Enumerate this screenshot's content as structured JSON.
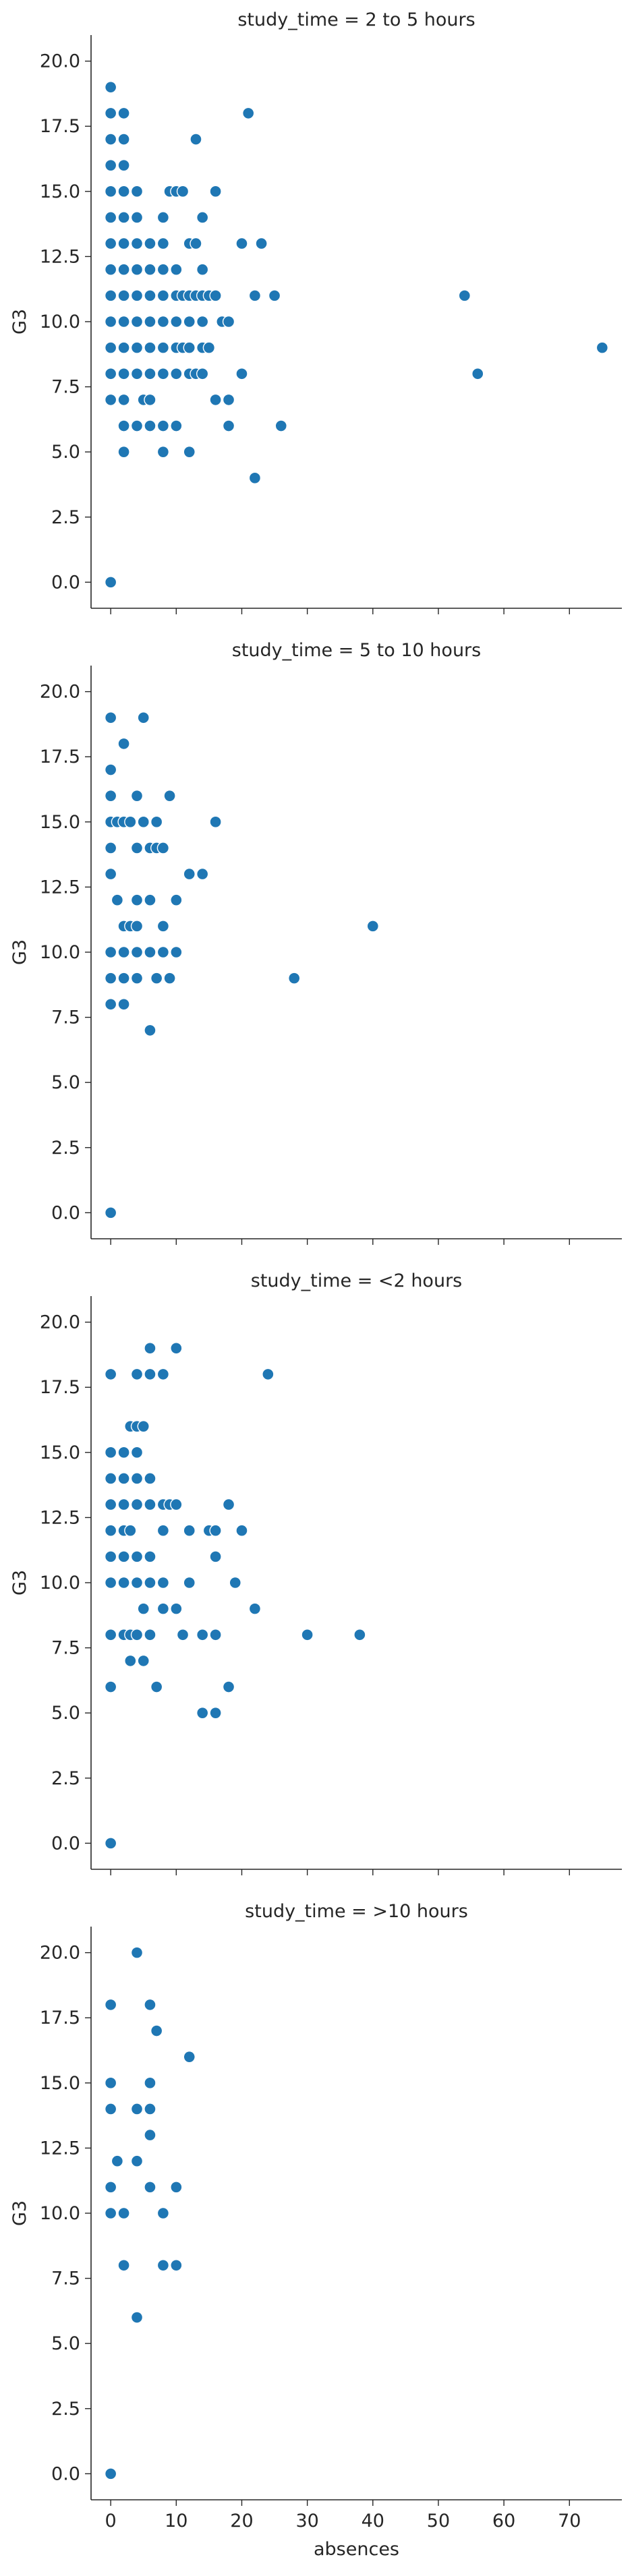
{
  "chart_data": {
    "type": "scatter",
    "layout": "facet-grid-rows",
    "facet_variable": "study_time",
    "xlabel": "absences",
    "ylabel": "G3",
    "xlim": [
      -3,
      78
    ],
    "ylim": [
      -1,
      21
    ],
    "xticks": [
      0,
      10,
      20,
      30,
      40,
      50,
      60,
      70
    ],
    "yticks": [
      0.0,
      2.5,
      5.0,
      7.5,
      10.0,
      12.5,
      15.0,
      17.5,
      20.0
    ],
    "ytick_labels": [
      "0.0",
      "2.5",
      "5.0",
      "7.5",
      "10.0",
      "12.5",
      "15.0",
      "17.5",
      "20.0"
    ],
    "marker_color": "#1f77b4",
    "marker_edge": "#ffffff",
    "grid": false,
    "facets": [
      {
        "title": "study_time = 2 to 5 hours",
        "points": [
          [
            0,
            19
          ],
          [
            0,
            18
          ],
          [
            0,
            17
          ],
          [
            0,
            16
          ],
          [
            0,
            15
          ],
          [
            0,
            14
          ],
          [
            0,
            13
          ],
          [
            0,
            12
          ],
          [
            0,
            11
          ],
          [
            0,
            10
          ],
          [
            0,
            9
          ],
          [
            0,
            8
          ],
          [
            0,
            7
          ],
          [
            0,
            0
          ],
          [
            2,
            18
          ],
          [
            2,
            17
          ],
          [
            2,
            16
          ],
          [
            2,
            15
          ],
          [
            2,
            14
          ],
          [
            2,
            13
          ],
          [
            2,
            12
          ],
          [
            2,
            11
          ],
          [
            2,
            10
          ],
          [
            2,
            9
          ],
          [
            2,
            8
          ],
          [
            2,
            7
          ],
          [
            2,
            6
          ],
          [
            2,
            5
          ],
          [
            4,
            15
          ],
          [
            4,
            14
          ],
          [
            4,
            13
          ],
          [
            4,
            12
          ],
          [
            4,
            11
          ],
          [
            4,
            10
          ],
          [
            4,
            9
          ],
          [
            4,
            8
          ],
          [
            4,
            6
          ],
          [
            5,
            7
          ],
          [
            6,
            13
          ],
          [
            6,
            12
          ],
          [
            6,
            11
          ],
          [
            6,
            10
          ],
          [
            6,
            9
          ],
          [
            6,
            8
          ],
          [
            6,
            7
          ],
          [
            6,
            6
          ],
          [
            8,
            14
          ],
          [
            8,
            13
          ],
          [
            8,
            12
          ],
          [
            8,
            11
          ],
          [
            8,
            10
          ],
          [
            8,
            9
          ],
          [
            8,
            8
          ],
          [
            8,
            6
          ],
          [
            8,
            5
          ],
          [
            9,
            15
          ],
          [
            10,
            15
          ],
          [
            10,
            12
          ],
          [
            10,
            11
          ],
          [
            10,
            10
          ],
          [
            10,
            9
          ],
          [
            10,
            8
          ],
          [
            10,
            6
          ],
          [
            11,
            15
          ],
          [
            11,
            11
          ],
          [
            11,
            9
          ],
          [
            12,
            13
          ],
          [
            12,
            11
          ],
          [
            12,
            10
          ],
          [
            12,
            9
          ],
          [
            12,
            8
          ],
          [
            12,
            5
          ],
          [
            13,
            17
          ],
          [
            13,
            13
          ],
          [
            13,
            11
          ],
          [
            13,
            8
          ],
          [
            14,
            14
          ],
          [
            14,
            12
          ],
          [
            14,
            11
          ],
          [
            14,
            10
          ],
          [
            14,
            9
          ],
          [
            14,
            8
          ],
          [
            15,
            11
          ],
          [
            15,
            9
          ],
          [
            16,
            15
          ],
          [
            16,
            11
          ],
          [
            16,
            7
          ],
          [
            17,
            10
          ],
          [
            18,
            10
          ],
          [
            18,
            7
          ],
          [
            18,
            6
          ],
          [
            20,
            13
          ],
          [
            20,
            8
          ],
          [
            21,
            18
          ],
          [
            22,
            11
          ],
          [
            22,
            4
          ],
          [
            23,
            13
          ],
          [
            25,
            11
          ],
          [
            26,
            6
          ],
          [
            54,
            11
          ],
          [
            56,
            8
          ],
          [
            75,
            9
          ]
        ]
      },
      {
        "title": "study_time = 5 to 10 hours",
        "points": [
          [
            0,
            19
          ],
          [
            0,
            17
          ],
          [
            0,
            16
          ],
          [
            0,
            15
          ],
          [
            0,
            14
          ],
          [
            0,
            13
          ],
          [
            0,
            10
          ],
          [
            0,
            9
          ],
          [
            0,
            8
          ],
          [
            0,
            0
          ],
          [
            1,
            15
          ],
          [
            1,
            12
          ],
          [
            2,
            18
          ],
          [
            2,
            15
          ],
          [
            2,
            11
          ],
          [
            2,
            10
          ],
          [
            2,
            9
          ],
          [
            2,
            8
          ],
          [
            3,
            15
          ],
          [
            3,
            11
          ],
          [
            4,
            16
          ],
          [
            4,
            14
          ],
          [
            4,
            12
          ],
          [
            4,
            11
          ],
          [
            4,
            10
          ],
          [
            4,
            9
          ],
          [
            5,
            19
          ],
          [
            5,
            15
          ],
          [
            6,
            14
          ],
          [
            6,
            12
          ],
          [
            6,
            10
          ],
          [
            6,
            7
          ],
          [
            7,
            15
          ],
          [
            7,
            14
          ],
          [
            7,
            9
          ],
          [
            8,
            14
          ],
          [
            8,
            11
          ],
          [
            8,
            10
          ],
          [
            9,
            16
          ],
          [
            9,
            9
          ],
          [
            10,
            12
          ],
          [
            10,
            10
          ],
          [
            12,
            13
          ],
          [
            14,
            13
          ],
          [
            16,
            15
          ],
          [
            28,
            9
          ],
          [
            40,
            11
          ]
        ]
      },
      {
        "title": "study_time = <2 hours",
        "points": [
          [
            0,
            18
          ],
          [
            0,
            15
          ],
          [
            0,
            14
          ],
          [
            0,
            13
          ],
          [
            0,
            12
          ],
          [
            0,
            11
          ],
          [
            0,
            10
          ],
          [
            0,
            8
          ],
          [
            0,
            6
          ],
          [
            0,
            0
          ],
          [
            2,
            15
          ],
          [
            2,
            14
          ],
          [
            2,
            13
          ],
          [
            2,
            12
          ],
          [
            2,
            11
          ],
          [
            2,
            10
          ],
          [
            2,
            8
          ],
          [
            3,
            16
          ],
          [
            3,
            12
          ],
          [
            3,
            8
          ],
          [
            3,
            7
          ],
          [
            4,
            18
          ],
          [
            4,
            16
          ],
          [
            4,
            15
          ],
          [
            4,
            14
          ],
          [
            4,
            13
          ],
          [
            4,
            11
          ],
          [
            4,
            10
          ],
          [
            4,
            8
          ],
          [
            5,
            16
          ],
          [
            5,
            9
          ],
          [
            5,
            7
          ],
          [
            6,
            19
          ],
          [
            6,
            18
          ],
          [
            6,
            14
          ],
          [
            6,
            13
          ],
          [
            6,
            11
          ],
          [
            6,
            10
          ],
          [
            6,
            8
          ],
          [
            7,
            6
          ],
          [
            8,
            18
          ],
          [
            8,
            13
          ],
          [
            8,
            12
          ],
          [
            8,
            10
          ],
          [
            8,
            9
          ],
          [
            9,
            13
          ],
          [
            10,
            19
          ],
          [
            10,
            13
          ],
          [
            10,
            9
          ],
          [
            11,
            8
          ],
          [
            12,
            12
          ],
          [
            12,
            10
          ],
          [
            14,
            8
          ],
          [
            14,
            5
          ],
          [
            15,
            12
          ],
          [
            16,
            12
          ],
          [
            16,
            11
          ],
          [
            16,
            8
          ],
          [
            16,
            5
          ],
          [
            18,
            13
          ],
          [
            18,
            6
          ],
          [
            19,
            10
          ],
          [
            20,
            12
          ],
          [
            22,
            9
          ],
          [
            24,
            18
          ],
          [
            30,
            8
          ],
          [
            38,
            8
          ]
        ]
      },
      {
        "title": "study_time = >10 hours",
        "points": [
          [
            0,
            18
          ],
          [
            0,
            15
          ],
          [
            0,
            14
          ],
          [
            0,
            11
          ],
          [
            0,
            10
          ],
          [
            0,
            0
          ],
          [
            1,
            12
          ],
          [
            2,
            10
          ],
          [
            2,
            8
          ],
          [
            4,
            20
          ],
          [
            4,
            14
          ],
          [
            4,
            12
          ],
          [
            4,
            6
          ],
          [
            6,
            18
          ],
          [
            6,
            15
          ],
          [
            6,
            14
          ],
          [
            6,
            13
          ],
          [
            6,
            11
          ],
          [
            7,
            17
          ],
          [
            8,
            10
          ],
          [
            8,
            8
          ],
          [
            10,
            11
          ],
          [
            10,
            8
          ],
          [
            12,
            16
          ]
        ]
      }
    ]
  }
}
